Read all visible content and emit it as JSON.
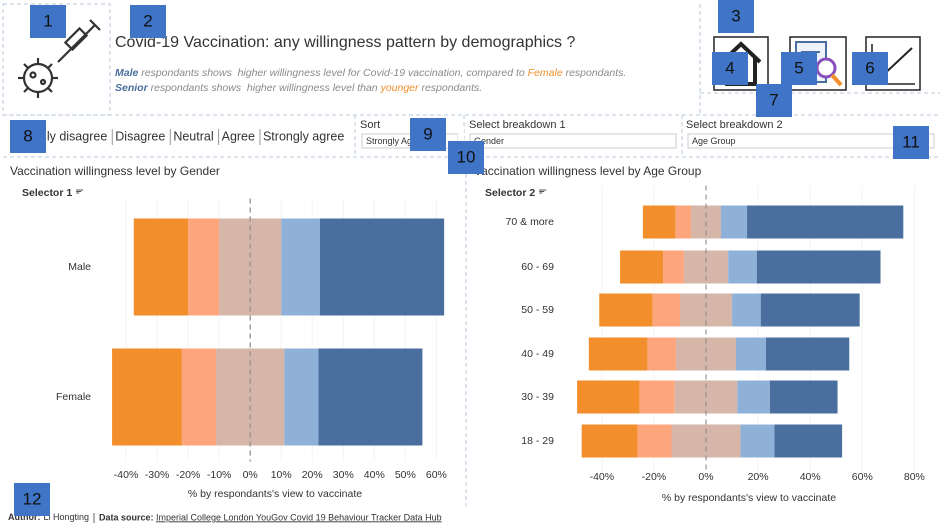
{
  "header": {
    "title": "Covid-19 Vaccination: any willingness pattern by demographics ?",
    "notes": [
      [
        "Male",
        " respondants shows  higher willingness level for Covid-19 vaccination, compared to ",
        "Female",
        " respondants."
      ],
      [
        "Senior",
        " respondants shows  higher willingness level than ",
        "younger",
        " respondants."
      ]
    ]
  },
  "controls": [
    {
      "label": "Sort",
      "value": "Strongly Agree"
    },
    {
      "label": "Select breakdown 1",
      "value": "Gender"
    },
    {
      "label": "Select breakdown 2",
      "value": "Age Group"
    }
  ],
  "chart_data": [
    {
      "type": "bar",
      "title": "Vaccination willingness level by Gender",
      "selector": "Selector 1",
      "categories": [
        "Male",
        "Female"
      ],
      "series": [
        {
          "name": "Strongly disagree",
          "color": "#f28e2b",
          "values": [
            17.5,
            22.5
          ]
        },
        {
          "name": "Disagree",
          "color": "#fda57c",
          "values": [
            10,
            11
          ]
        },
        {
          "name": "Neutral",
          "color": "#d5b6a8",
          "values": [
            20,
            22
          ]
        },
        {
          "name": "Agree",
          "color": "#8fb1d8",
          "values": [
            12.5,
            11
          ]
        },
        {
          "name": "Strongly agree",
          "color": "#4a6f9e",
          "values": [
            40,
            33.5
          ]
        }
      ],
      "xlim": [
        -50,
        66
      ],
      "xticks": [
        {
          "value": -40,
          "label": "-40%"
        },
        {
          "value": -30,
          "label": "-30%"
        },
        {
          "value": -20,
          "label": "-20%"
        },
        {
          "value": -10,
          "label": "-10%"
        },
        {
          "value": 0,
          "label": "0%"
        },
        {
          "value": 10,
          "label": "10%"
        },
        {
          "value": 20,
          "label": "20%"
        },
        {
          "value": 30,
          "label": "30%"
        },
        {
          "value": 40,
          "label": "40%"
        },
        {
          "value": 50,
          "label": "50%"
        },
        {
          "value": 60,
          "label": "60%"
        }
      ],
      "xlabel": "% by respondants's view to vaccinate"
    },
    {
      "type": "bar",
      "title": "Vaccination willingness level by Age Group",
      "selector": "Selector 2",
      "categories": [
        "70 & more",
        "60 - 69",
        "50 - 59",
        "40 - 49",
        "30 - 39",
        "18 - 29"
      ],
      "series": [
        {
          "name": "Strongly disagree",
          "color": "#f28e2b",
          "values": [
            12.5,
            16.5,
            20.5,
            22.5,
            24,
            21.5
          ]
        },
        {
          "name": "Disagree",
          "color": "#fda57c",
          "values": [
            6,
            8,
            10.5,
            11,
            13.5,
            13
          ]
        },
        {
          "name": "Neutral",
          "color": "#d5b6a8",
          "values": [
            11.5,
            17,
            20,
            23,
            24,
            26.5
          ]
        },
        {
          "name": "Agree",
          "color": "#8fb1d8",
          "values": [
            10,
            11,
            11,
            11.5,
            12.5,
            13
          ]
        },
        {
          "name": "Strongly agree",
          "color": "#4a6f9e",
          "values": [
            60,
            47.5,
            38,
            32,
            26,
            26
          ]
        }
      ],
      "xlim": [
        -53,
        86
      ],
      "xticks": [
        {
          "value": -40,
          "label": "-40%"
        },
        {
          "value": -20,
          "label": "-20%"
        },
        {
          "value": 0,
          "label": "0%"
        },
        {
          "value": 20,
          "label": "20%"
        },
        {
          "value": 40,
          "label": "40%"
        },
        {
          "value": 60,
          "label": "60%"
        },
        {
          "value": 80,
          "label": "80%"
        }
      ],
      "xlabel": "% by respondants's view to vaccinate"
    }
  ],
  "footer": {
    "author_label": "Author:",
    "author": "Li Hongting",
    "source_label": "Data source:",
    "source_link": "Imperial College London YouGov Covid 19 Behaviour Tracker Data Hub"
  },
  "annotations": [
    "1",
    "2",
    "3",
    "4",
    "5",
    "6",
    "7",
    "8",
    "9",
    "10",
    "11",
    "12"
  ]
}
